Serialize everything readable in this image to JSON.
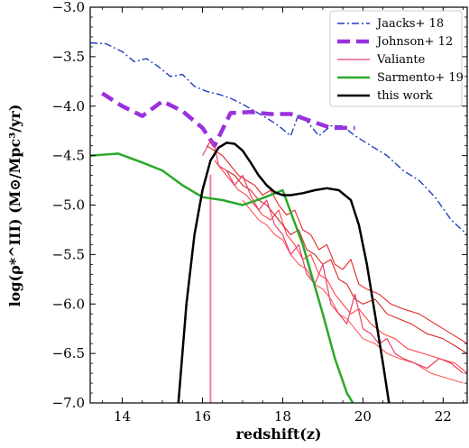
{
  "chart_data": {
    "type": "line",
    "title": "",
    "xlabel": "redshift(z)",
    "ylabel": "log(ρ*^III) (M⊙/Mpc³/yr)",
    "xlim": [
      13.2,
      22.6
    ],
    "ylim": [
      -7.0,
      -3.0
    ],
    "xticks": [
      14,
      16,
      18,
      20,
      22
    ],
    "yticks": [
      -7.0,
      -6.5,
      -6.0,
      -5.5,
      -5.0,
      -4.5,
      -4.0,
      -3.5,
      -3.0
    ],
    "xtick_labels": [
      "14",
      "16",
      "18",
      "20",
      "22"
    ],
    "ytick_labels": [
      "−7.0",
      "−6.5",
      "−6.0",
      "−5.5",
      "−5.0",
      "−4.5",
      "−4.0",
      "−3.5",
      "−3.0"
    ],
    "grid": false,
    "legend_position": "top-right",
    "series": [
      {
        "name": "Jaacks+ 18",
        "color": "#1f3fbf",
        "style": "dashdot",
        "points": [
          [
            13.2,
            -3.36
          ],
          [
            13.6,
            -3.37
          ],
          [
            14.0,
            -3.45
          ],
          [
            14.3,
            -3.55
          ],
          [
            14.6,
            -3.52
          ],
          [
            14.9,
            -3.6
          ],
          [
            15.2,
            -3.7
          ],
          [
            15.5,
            -3.68
          ],
          [
            15.8,
            -3.8
          ],
          [
            16.1,
            -3.85
          ],
          [
            16.4,
            -3.88
          ],
          [
            16.7,
            -3.92
          ],
          [
            17.0,
            -3.98
          ],
          [
            17.3,
            -4.05
          ],
          [
            17.6,
            -4.12
          ],
          [
            17.9,
            -4.2
          ],
          [
            18.2,
            -4.3
          ],
          [
            18.4,
            -4.08
          ],
          [
            18.6,
            -4.15
          ],
          [
            18.9,
            -4.3
          ],
          [
            19.2,
            -4.2
          ],
          [
            19.5,
            -4.2
          ],
          [
            19.8,
            -4.3
          ],
          [
            20.2,
            -4.4
          ],
          [
            20.6,
            -4.5
          ],
          [
            21.0,
            -4.65
          ],
          [
            21.4,
            -4.75
          ],
          [
            21.8,
            -4.92
          ],
          [
            22.2,
            -5.15
          ],
          [
            22.6,
            -5.3
          ]
        ]
      },
      {
        "name": "Johnson+ 12",
        "color": "#9b30e0",
        "style": "dashed",
        "points": [
          [
            13.5,
            -3.87
          ],
          [
            14.0,
            -4.0
          ],
          [
            14.5,
            -4.1
          ],
          [
            15.0,
            -3.95
          ],
          [
            15.5,
            -4.05
          ],
          [
            16.0,
            -4.22
          ],
          [
            16.3,
            -4.4
          ],
          [
            16.7,
            -4.07
          ],
          [
            17.2,
            -4.06
          ],
          [
            17.7,
            -4.08
          ],
          [
            18.2,
            -4.08
          ],
          [
            18.7,
            -4.15
          ],
          [
            19.2,
            -4.22
          ],
          [
            19.8,
            -4.22
          ]
        ]
      },
      {
        "name": "Valiante",
        "color": "#e8406a",
        "style": "solid",
        "points": [
          [
            16.0,
            -4.5
          ],
          [
            16.2,
            -4.35
          ],
          [
            16.3,
            -4.4
          ],
          [
            16.4,
            -4.6
          ],
          [
            16.6,
            -4.65
          ],
          [
            16.8,
            -4.8
          ],
          [
            17.0,
            -4.7
          ],
          [
            17.2,
            -4.9
          ],
          [
            17.4,
            -5.05
          ],
          [
            17.6,
            -4.95
          ],
          [
            17.8,
            -5.2
          ],
          [
            18.0,
            -5.3
          ],
          [
            18.2,
            -5.5
          ],
          [
            18.4,
            -5.4
          ],
          [
            18.6,
            -5.7
          ],
          [
            18.8,
            -5.8
          ],
          [
            19.0,
            -5.6
          ],
          [
            19.2,
            -6.0
          ],
          [
            19.4,
            -6.1
          ],
          [
            19.6,
            -6.2
          ],
          [
            19.8,
            -5.9
          ],
          [
            20.0,
            -6.25
          ],
          [
            20.2,
            -6.3
          ],
          [
            20.4,
            -6.4
          ],
          [
            20.6,
            -6.35
          ],
          [
            20.8,
            -6.5
          ],
          [
            21.0,
            -6.55
          ],
          [
            21.3,
            -6.6
          ],
          [
            21.6,
            -6.65
          ],
          [
            21.9,
            -6.55
          ],
          [
            22.2,
            -6.6
          ],
          [
            22.5,
            -6.7
          ]
        ]
      },
      {
        "name": "Sarmento+ 19",
        "color": "#2aa82a",
        "style": "solid",
        "points": [
          [
            13.2,
            -4.5
          ],
          [
            13.9,
            -4.48
          ],
          [
            14.5,
            -4.57
          ],
          [
            15.0,
            -4.65
          ],
          [
            15.5,
            -4.8
          ],
          [
            16.0,
            -4.92
          ],
          [
            16.5,
            -4.95
          ],
          [
            17.0,
            -5.0
          ],
          [
            17.5,
            -4.93
          ],
          [
            18.0,
            -4.85
          ],
          [
            18.5,
            -5.4
          ],
          [
            19.0,
            -6.1
          ],
          [
            19.3,
            -6.55
          ],
          [
            19.6,
            -6.9
          ],
          [
            19.75,
            -7.0
          ]
        ]
      },
      {
        "name": "this work",
        "color": "#000000",
        "style": "solid",
        "points": [
          [
            15.4,
            -7.0
          ],
          [
            15.6,
            -6.0
          ],
          [
            15.8,
            -5.3
          ],
          [
            16.0,
            -4.85
          ],
          [
            16.2,
            -4.55
          ],
          [
            16.4,
            -4.42
          ],
          [
            16.6,
            -4.37
          ],
          [
            16.8,
            -4.38
          ],
          [
            17.0,
            -4.45
          ],
          [
            17.2,
            -4.57
          ],
          [
            17.4,
            -4.7
          ],
          [
            17.6,
            -4.8
          ],
          [
            17.8,
            -4.87
          ],
          [
            18.0,
            -4.9
          ],
          [
            18.2,
            -4.9
          ],
          [
            18.5,
            -4.88
          ],
          [
            18.8,
            -4.85
          ],
          [
            19.1,
            -4.83
          ],
          [
            19.4,
            -4.85
          ],
          [
            19.7,
            -4.95
          ],
          [
            19.9,
            -5.2
          ],
          [
            20.1,
            -5.6
          ],
          [
            20.3,
            -6.1
          ],
          [
            20.5,
            -6.6
          ],
          [
            20.65,
            -7.0
          ]
        ]
      }
    ],
    "red_sims": [
      {
        "color": "#e00000",
        "points": [
          [
            16.1,
            -4.4
          ],
          [
            16.3,
            -4.45
          ],
          [
            16.5,
            -4.5
          ],
          [
            16.7,
            -4.6
          ],
          [
            16.9,
            -4.7
          ],
          [
            17.1,
            -4.75
          ],
          [
            17.3,
            -4.8
          ],
          [
            17.5,
            -4.9
          ],
          [
            17.7,
            -4.85
          ],
          [
            17.9,
            -5.0
          ],
          [
            18.1,
            -5.1
          ],
          [
            18.3,
            -5.05
          ],
          [
            18.5,
            -5.25
          ],
          [
            18.7,
            -5.3
          ],
          [
            18.9,
            -5.45
          ],
          [
            19.1,
            -5.4
          ],
          [
            19.3,
            -5.6
          ],
          [
            19.5,
            -5.65
          ],
          [
            19.7,
            -5.55
          ],
          [
            19.9,
            -5.8
          ],
          [
            20.1,
            -5.85
          ],
          [
            20.4,
            -5.9
          ],
          [
            20.7,
            -6.0
          ],
          [
            21.0,
            -6.05
          ],
          [
            21.4,
            -6.1
          ],
          [
            21.8,
            -6.2
          ],
          [
            22.2,
            -6.3
          ],
          [
            22.6,
            -6.4
          ]
        ]
      },
      {
        "color": "#ff2020",
        "points": [
          [
            16.3,
            -4.55
          ],
          [
            16.5,
            -4.65
          ],
          [
            16.7,
            -4.75
          ],
          [
            16.9,
            -4.85
          ],
          [
            17.1,
            -4.9
          ],
          [
            17.3,
            -5.0
          ],
          [
            17.5,
            -5.1
          ],
          [
            17.7,
            -5.15
          ],
          [
            17.9,
            -5.05
          ],
          [
            18.1,
            -5.3
          ],
          [
            18.3,
            -5.4
          ],
          [
            18.5,
            -5.55
          ],
          [
            18.7,
            -5.5
          ],
          [
            18.9,
            -5.7
          ],
          [
            19.1,
            -5.75
          ],
          [
            19.3,
            -5.9
          ],
          [
            19.5,
            -6.0
          ],
          [
            19.7,
            -6.1
          ],
          [
            19.9,
            -6.05
          ],
          [
            20.2,
            -6.2
          ],
          [
            20.5,
            -6.3
          ],
          [
            20.8,
            -6.35
          ],
          [
            21.1,
            -6.45
          ],
          [
            21.5,
            -6.5
          ],
          [
            21.9,
            -6.55
          ],
          [
            22.3,
            -6.6
          ],
          [
            22.6,
            -6.7
          ]
        ]
      },
      {
        "color": "#cc0000",
        "points": [
          [
            16.6,
            -4.65
          ],
          [
            16.8,
            -4.7
          ],
          [
            17.0,
            -4.8
          ],
          [
            17.2,
            -4.85
          ],
          [
            17.4,
            -4.95
          ],
          [
            17.6,
            -5.0
          ],
          [
            17.8,
            -5.1
          ],
          [
            18.0,
            -5.2
          ],
          [
            18.2,
            -5.3
          ],
          [
            18.4,
            -5.25
          ],
          [
            18.6,
            -5.45
          ],
          [
            18.8,
            -5.5
          ],
          [
            19.0,
            -5.6
          ],
          [
            19.2,
            -5.55
          ],
          [
            19.4,
            -5.75
          ],
          [
            19.6,
            -5.8
          ],
          [
            19.8,
            -5.95
          ],
          [
            20.0,
            -6.0
          ],
          [
            20.3,
            -5.95
          ],
          [
            20.6,
            -6.1
          ],
          [
            20.9,
            -6.15
          ],
          [
            21.2,
            -6.2
          ],
          [
            21.6,
            -6.3
          ],
          [
            22.0,
            -6.35
          ],
          [
            22.4,
            -6.45
          ],
          [
            22.6,
            -6.5
          ]
        ]
      },
      {
        "color": "#ff3b3b",
        "points": [
          [
            17.0,
            -4.95
          ],
          [
            17.2,
            -5.05
          ],
          [
            17.4,
            -5.15
          ],
          [
            17.6,
            -5.2
          ],
          [
            17.8,
            -5.3
          ],
          [
            18.0,
            -5.35
          ],
          [
            18.2,
            -5.5
          ],
          [
            18.4,
            -5.6
          ],
          [
            18.6,
            -5.65
          ],
          [
            18.8,
            -5.8
          ],
          [
            19.0,
            -5.85
          ],
          [
            19.2,
            -5.95
          ],
          [
            19.4,
            -6.1
          ],
          [
            19.6,
            -6.15
          ],
          [
            19.8,
            -6.25
          ],
          [
            20.0,
            -6.35
          ],
          [
            20.3,
            -6.4
          ],
          [
            20.6,
            -6.5
          ],
          [
            20.9,
            -6.55
          ],
          [
            21.3,
            -6.6
          ],
          [
            21.7,
            -6.7
          ],
          [
            22.1,
            -6.75
          ],
          [
            22.5,
            -6.8
          ]
        ]
      },
      {
        "color": "#f06090",
        "points": [
          [
            16.19,
            -7.0
          ],
          [
            16.19,
            -4.7
          ],
          [
            16.21,
            -4.7
          ],
          [
            16.21,
            -7.0
          ]
        ]
      }
    ]
  }
}
